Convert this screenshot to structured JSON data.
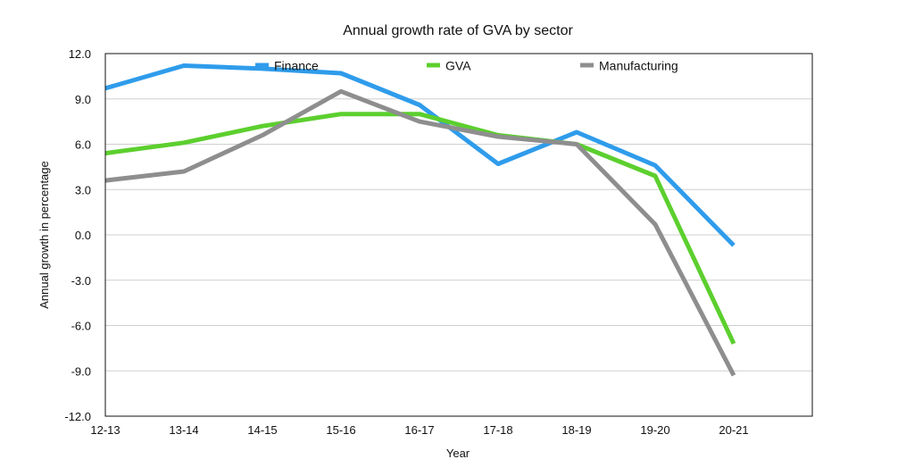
{
  "chart_data": {
    "type": "line",
    "title": "Annual growth rate of GVA by sector",
    "xlabel": "Year",
    "ylabel": "Annual growth in percentage",
    "categories": [
      "12-13",
      "13-14",
      "14-15",
      "15-16",
      "16-17",
      "17-18",
      "18-19",
      "19-20",
      "20-21"
    ],
    "ylim": [
      -12.0,
      12.0
    ],
    "yticks": [
      "12.0",
      "9.0",
      "6.0",
      "3.0",
      "0.0",
      "-3.0",
      "-6.0",
      "-9.0",
      "-12.0"
    ],
    "grid": true,
    "legend_position": "top",
    "series": [
      {
        "name": "Finance",
        "color": "#2f9ceb",
        "values": [
          9.7,
          11.2,
          11.0,
          10.7,
          8.6,
          4.7,
          6.8,
          4.6,
          -0.7
        ]
      },
      {
        "name": "GVA",
        "color": "#5ccf2e",
        "values": [
          5.4,
          6.1,
          7.2,
          8.0,
          8.0,
          6.6,
          6.0,
          3.9,
          -7.2
        ]
      },
      {
        "name": "Manufacturing",
        "color": "#8e8e8e",
        "values": [
          3.6,
          4.2,
          6.6,
          9.5,
          7.5,
          6.5,
          6.0,
          0.7,
          -9.3
        ]
      }
    ]
  }
}
